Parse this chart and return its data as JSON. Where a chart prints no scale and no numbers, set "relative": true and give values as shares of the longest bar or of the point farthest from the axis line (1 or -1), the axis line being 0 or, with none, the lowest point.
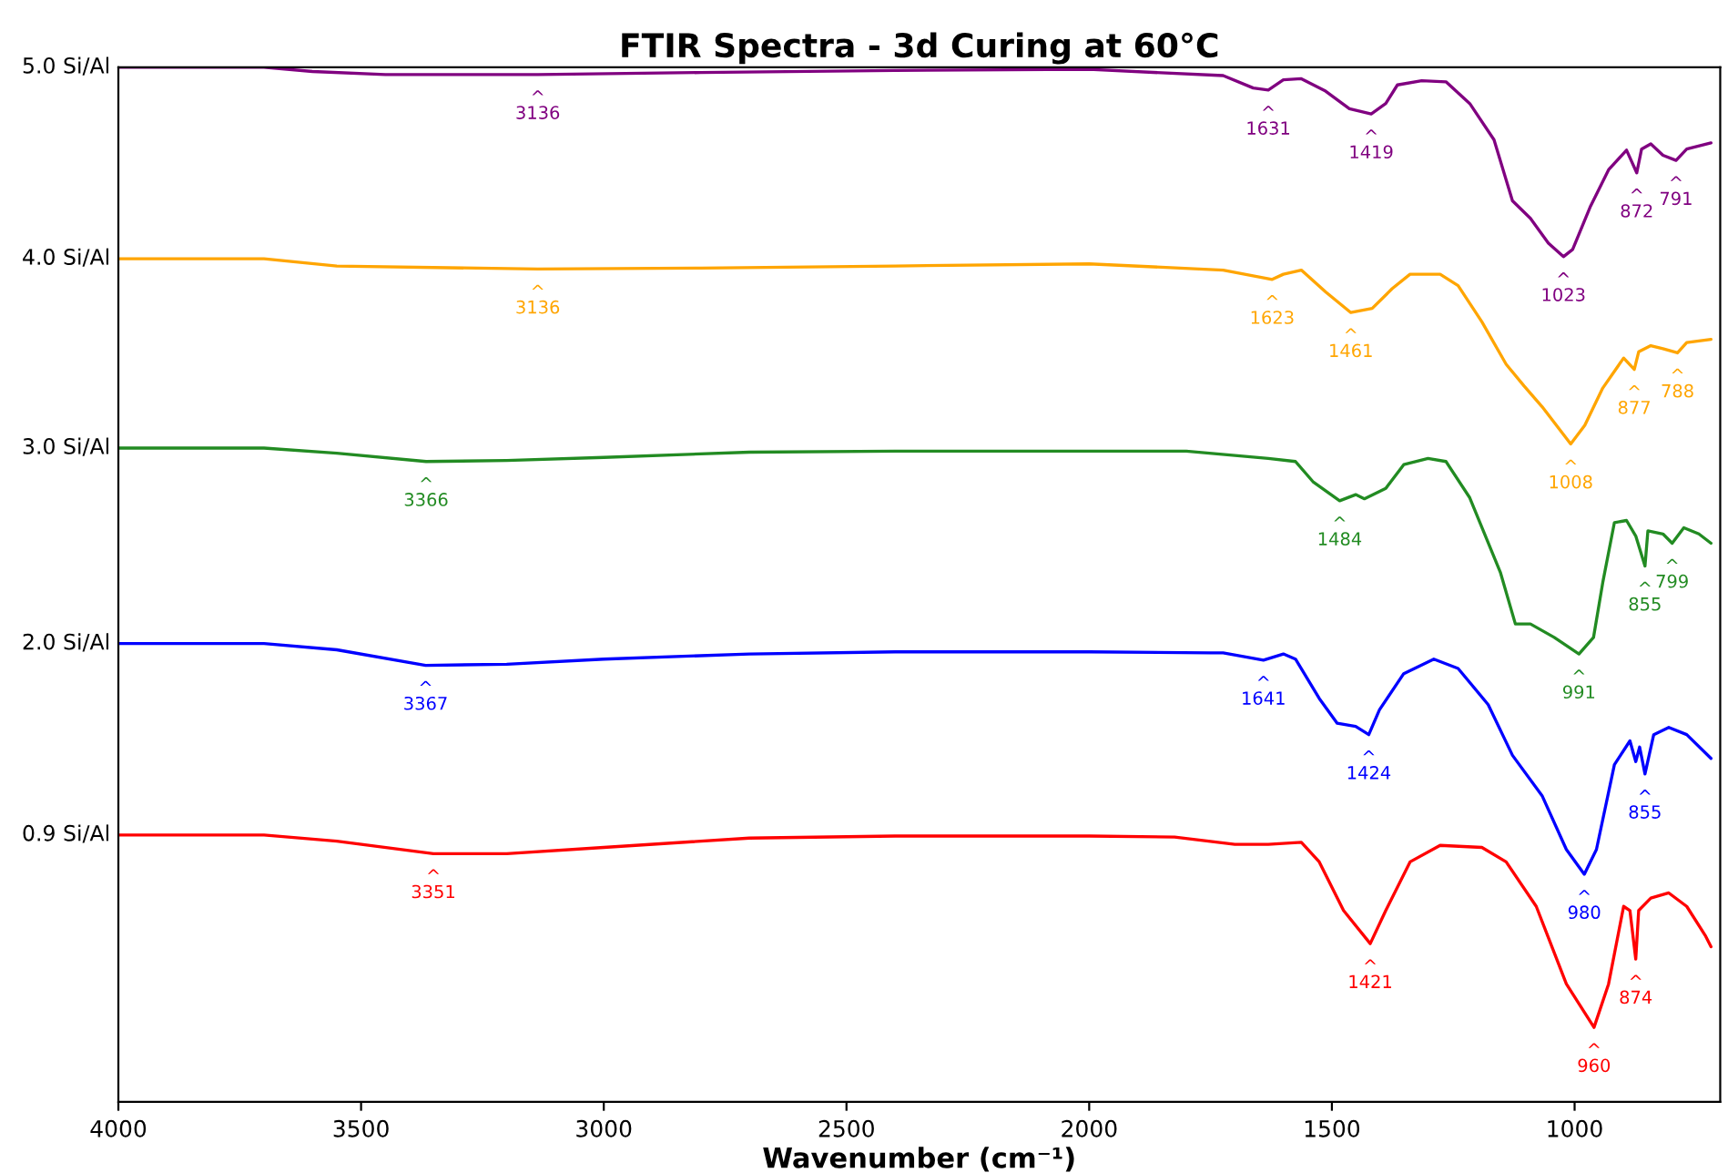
{
  "chart_data": {
    "type": "line",
    "title": "FTIR Spectra - 3d Curing at 60°C",
    "xlabel": "Wavenumber (cm⁻¹)",
    "relative": true,
    "xlim": [
      4000,
      700
    ],
    "xticks": [
      4000,
      3500,
      3000,
      2500,
      2000,
      1500,
      1000
    ],
    "grid": false,
    "legend": false,
    "marker": "none",
    "line_style": "solid",
    "series": [
      {
        "name": "5.0 Si/Al",
        "color": "#800080",
        "x": [
          4000,
          3700,
          3600,
          3450,
          3136,
          2800,
          2400,
          2000,
          1724,
          1662,
          1631,
          1600,
          1563,
          1513,
          1464,
          1419,
          1389,
          1365,
          1315,
          1265,
          1216,
          1166,
          1128,
          1091,
          1054,
          1023,
          1004,
          967,
          930,
          893,
          872,
          862,
          843,
          818,
          791,
          769,
          719
        ],
        "values": [
          1.0,
          1.0,
          0.996,
          0.993,
          0.993,
          0.995,
          0.997,
          0.998,
          0.992,
          0.98,
          0.978,
          0.988,
          0.989,
          0.977,
          0.96,
          0.955,
          0.965,
          0.983,
          0.987,
          0.986,
          0.965,
          0.93,
          0.871,
          0.854,
          0.83,
          0.817,
          0.824,
          0.866,
          0.901,
          0.92,
          0.898,
          0.921,
          0.926,
          0.915,
          0.91,
          0.921,
          0.927
        ]
      },
      {
        "name": "4.0 Si/Al",
        "color": "#ffa500",
        "x": [
          4000,
          3700,
          3550,
          3136,
          2800,
          2400,
          2000,
          1724,
          1623,
          1600,
          1563,
          1513,
          1461,
          1417,
          1376,
          1339,
          1277,
          1240,
          1191,
          1141,
          1104,
          1067,
          1008,
          979,
          942,
          899,
          877,
          868,
          843,
          818,
          788,
          769,
          719
        ],
        "values": [
          0.815,
          0.815,
          0.808,
          0.805,
          0.806,
          0.808,
          0.81,
          0.804,
          0.795,
          0.8,
          0.804,
          0.783,
          0.763,
          0.767,
          0.786,
          0.8,
          0.8,
          0.789,
          0.754,
          0.713,
          0.692,
          0.672,
          0.636,
          0.654,
          0.69,
          0.719,
          0.708,
          0.725,
          0.731,
          0.728,
          0.724,
          0.734,
          0.737
        ]
      },
      {
        "name": "3.0 Si/Al",
        "color": "#228b22",
        "x": [
          4000,
          3700,
          3550,
          3366,
          3200,
          3000,
          2700,
          2400,
          2000,
          1800,
          1631,
          1575,
          1538,
          1484,
          1451,
          1433,
          1389,
          1352,
          1302,
          1265,
          1216,
          1153,
          1122,
          1091,
          1042,
          991,
          961,
          942,
          918,
          893,
          874,
          855,
          849,
          818,
          799,
          775,
          744,
          719
        ],
        "values": [
          0.632,
          0.632,
          0.627,
          0.619,
          0.62,
          0.623,
          0.628,
          0.629,
          0.629,
          0.629,
          0.622,
          0.619,
          0.599,
          0.581,
          0.587,
          0.583,
          0.593,
          0.616,
          0.622,
          0.619,
          0.584,
          0.512,
          0.462,
          0.462,
          0.449,
          0.433,
          0.449,
          0.502,
          0.56,
          0.562,
          0.547,
          0.518,
          0.552,
          0.549,
          0.54,
          0.555,
          0.549,
          0.54
        ]
      },
      {
        "name": "2.0 Si/Al",
        "color": "#0000ff",
        "x": [
          4000,
          3700,
          3550,
          3367,
          3200,
          3000,
          2700,
          2400,
          2000,
          1750,
          1724,
          1641,
          1600,
          1575,
          1526,
          1489,
          1451,
          1424,
          1402,
          1352,
          1290,
          1240,
          1178,
          1128,
          1067,
          1017,
          980,
          955,
          918,
          886,
          874,
          866,
          855,
          837,
          806,
          769,
          719
        ],
        "values": [
          0.443,
          0.443,
          0.437,
          0.422,
          0.423,
          0.428,
          0.433,
          0.435,
          0.435,
          0.434,
          0.434,
          0.427,
          0.433,
          0.428,
          0.39,
          0.366,
          0.363,
          0.355,
          0.379,
          0.414,
          0.428,
          0.419,
          0.384,
          0.335,
          0.296,
          0.244,
          0.22,
          0.244,
          0.326,
          0.349,
          0.329,
          0.343,
          0.317,
          0.355,
          0.362,
          0.355,
          0.332
        ]
      },
      {
        "name": "0.9 Si/Al",
        "color": "#ff0000",
        "x": [
          4000,
          3700,
          3550,
          3351,
          3200,
          3000,
          2700,
          2400,
          2000,
          1824,
          1700,
          1631,
          1563,
          1526,
          1476,
          1421,
          1389,
          1339,
          1277,
          1191,
          1141,
          1079,
          1017,
          960,
          930,
          899,
          886,
          874,
          868,
          843,
          806,
          769,
          731,
          719
        ],
        "values": [
          0.258,
          0.258,
          0.252,
          0.24,
          0.24,
          0.246,
          0.255,
          0.257,
          0.257,
          0.256,
          0.249,
          0.249,
          0.251,
          0.232,
          0.185,
          0.153,
          0.185,
          0.232,
          0.248,
          0.246,
          0.232,
          0.189,
          0.114,
          0.072,
          0.114,
          0.189,
          0.185,
          0.138,
          0.185,
          0.197,
          0.202,
          0.189,
          0.161,
          0.15
        ]
      }
    ],
    "annotations": [
      {
        "text": "^\n3136",
        "x": 3136,
        "y": 0.993
      },
      {
        "text": "^\n1631",
        "x": 1631,
        "y": 0.978
      },
      {
        "text": "^\n1419",
        "x": 1419,
        "y": 0.955
      },
      {
        "text": "^\n1023",
        "x": 1023,
        "y": 0.817
      },
      {
        "text": "^\n872",
        "x": 872,
        "y": 0.898
      },
      {
        "text": "^\n791",
        "x": 791,
        "y": 0.91
      },
      {
        "text": "^\n3136",
        "x": 3136,
        "y": 0.805
      },
      {
        "text": "^\n1623",
        "x": 1623,
        "y": 0.795
      },
      {
        "text": "^\n1461",
        "x": 1461,
        "y": 0.763
      },
      {
        "text": "^\n1008",
        "x": 1008,
        "y": 0.636
      },
      {
        "text": "^\n877",
        "x": 877,
        "y": 0.708
      },
      {
        "text": "^\n788",
        "x": 788,
        "y": 0.724
      },
      {
        "text": "^\n3366",
        "x": 3366,
        "y": 0.619
      },
      {
        "text": "^\n1484",
        "x": 1484,
        "y": 0.581
      },
      {
        "text": "^\n991",
        "x": 991,
        "y": 0.433
      },
      {
        "text": "^\n855",
        "x": 855,
        "y": 0.518
      },
      {
        "text": "^\n799",
        "x": 799,
        "y": 0.54
      },
      {
        "text": "^\n3367",
        "x": 3367,
        "y": 0.422
      },
      {
        "text": "^\n1641",
        "x": 1641,
        "y": 0.427
      },
      {
        "text": "^\n1424",
        "x": 1424,
        "y": 0.355
      },
      {
        "text": "^\n980",
        "x": 980,
        "y": 0.22
      },
      {
        "text": "^\n855",
        "x": 855,
        "y": 0.317
      },
      {
        "text": "^\n3351",
        "x": 3351,
        "y": 0.24
      },
      {
        "text": "^\n1421",
        "x": 1421,
        "y": 0.153
      },
      {
        "text": "^\n960",
        "x": 960,
        "y": 0.072
      },
      {
        "text": "^\n874",
        "x": 874,
        "y": 0.138
      }
    ]
  }
}
